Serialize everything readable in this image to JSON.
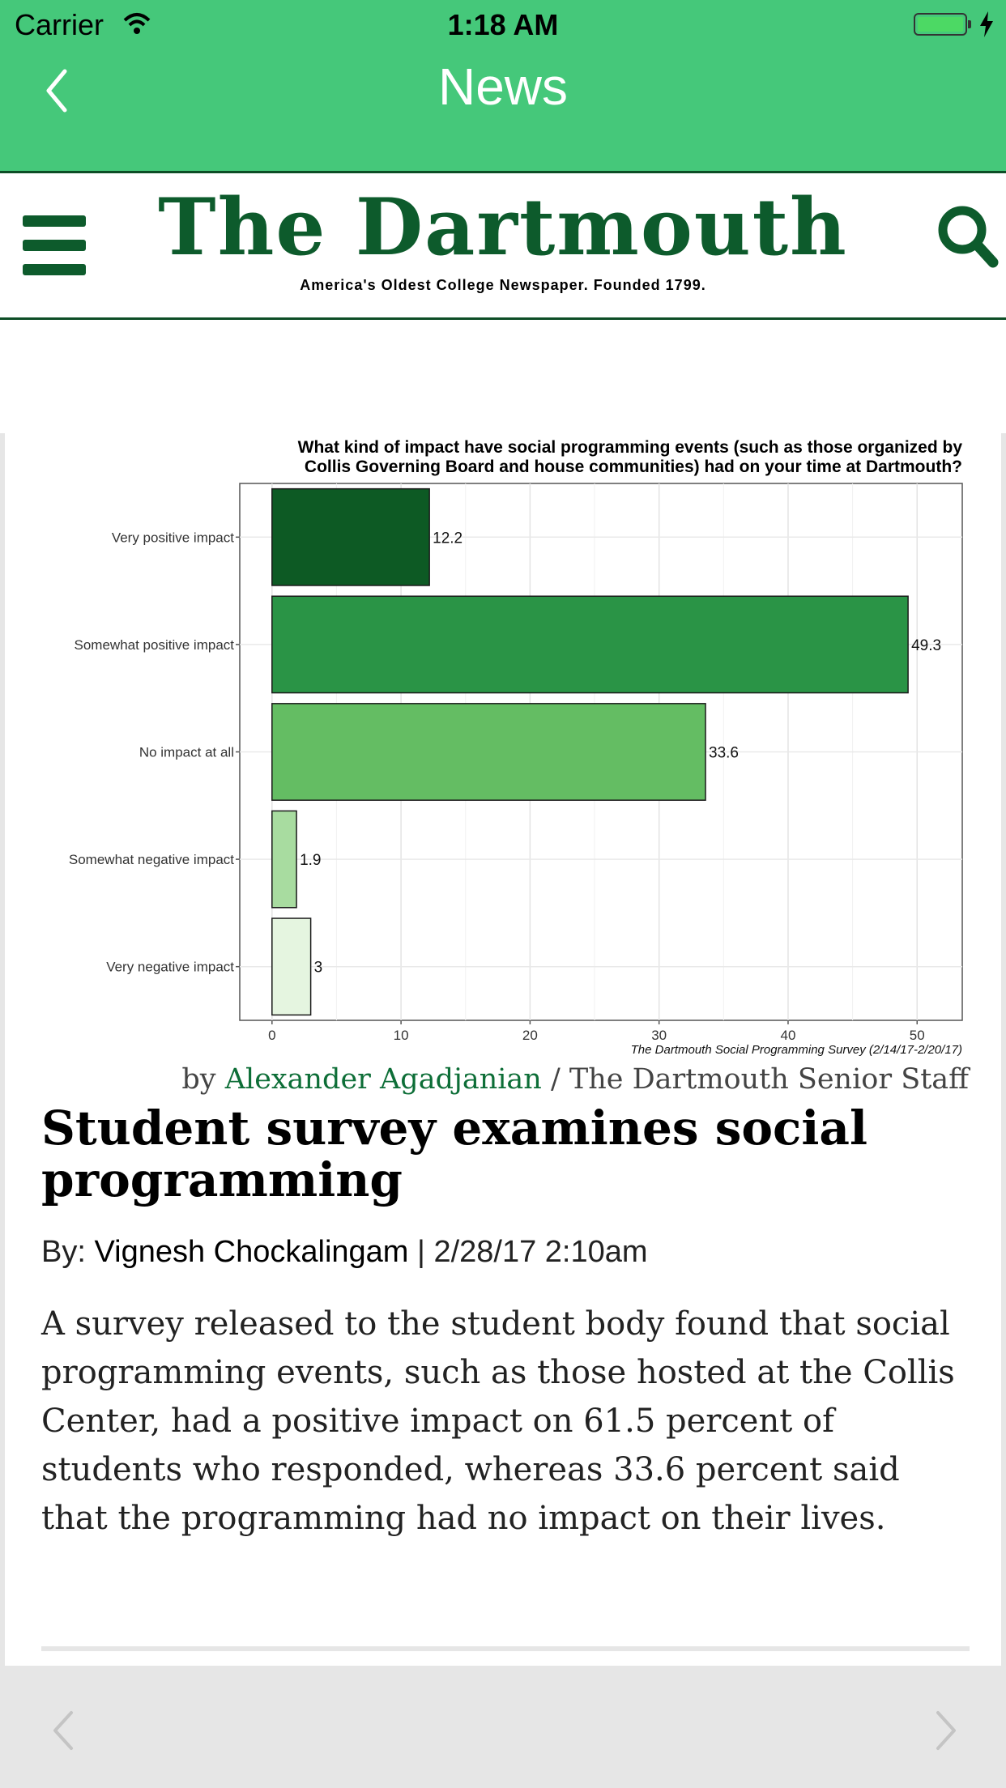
{
  "status_bar": {
    "carrier": "Carrier",
    "time": "1:18 AM"
  },
  "nav": {
    "title": "News"
  },
  "masthead": {
    "logo": "The Dartmouth",
    "tagline": "America's Oldest College Newspaper. Founded 1799."
  },
  "article": {
    "caption_prefix": "by ",
    "caption_author": "Alexander Agadjanian",
    "caption_suffix": " / The Dartmouth Senior Staff",
    "headline": "Student survey examines social programming",
    "byline_prefix": "By: ",
    "byline_author": "Vignesh Chockalingam",
    "byline_date": " | 2/28/17 2:10am",
    "body": "A survey released to the student body found that social programming events, such as those hosted at the Collis Center, had a positive impact on 61.5 percent of students who responded, whereas 33.6 percent said that the programming had no impact on their lives."
  },
  "chart_data": {
    "type": "bar",
    "orientation": "horizontal",
    "title": "What kind of impact have social programming events (such as those organized by Collis Governing Board and house communities) had on your time at Dartmouth?",
    "source": "The Dartmouth Social Programming Survey (2/14/17-2/20/17)",
    "categories": [
      "Very positive impact",
      "Somewhat positive impact",
      "No impact at all",
      "Somewhat negative impact",
      "Very negative impact"
    ],
    "values": [
      12.2,
      49.3,
      33.6,
      1.9,
      3
    ],
    "value_labels": [
      "12.2",
      "49.3",
      "33.6",
      "1.9",
      "3"
    ],
    "colors": [
      "#0d5a24",
      "#2a9446",
      "#64bd63",
      "#a8dca0",
      "#e5f5e0"
    ],
    "xlim": [
      -2.5,
      53.5
    ],
    "xticks": [
      0,
      10,
      20,
      30,
      40,
      50
    ],
    "grid": true
  }
}
